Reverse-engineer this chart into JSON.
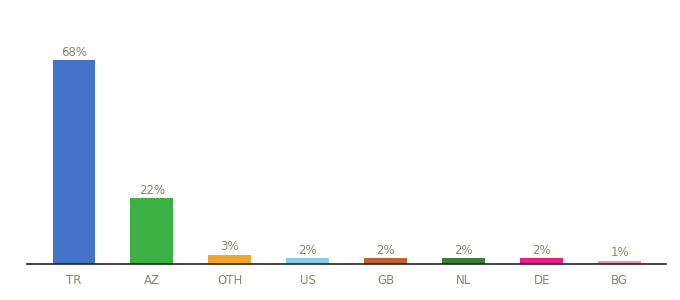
{
  "categories": [
    "TR",
    "AZ",
    "OTH",
    "US",
    "GB",
    "NL",
    "DE",
    "BG"
  ],
  "values": [
    68,
    22,
    3,
    2,
    2,
    2,
    2,
    1
  ],
  "labels": [
    "68%",
    "22%",
    "3%",
    "2%",
    "2%",
    "2%",
    "2%",
    "1%"
  ],
  "bar_colors": [
    "#4472c4",
    "#3cb043",
    "#f5a623",
    "#87ceeb",
    "#c0622a",
    "#3a7d35",
    "#e91e8c",
    "#f48fb1"
  ],
  "background_color": "#ffffff",
  "ylim": [
    0,
    80
  ],
  "label_fontsize": 8.5,
  "tick_fontsize": 8.5,
  "bar_width": 0.55
}
